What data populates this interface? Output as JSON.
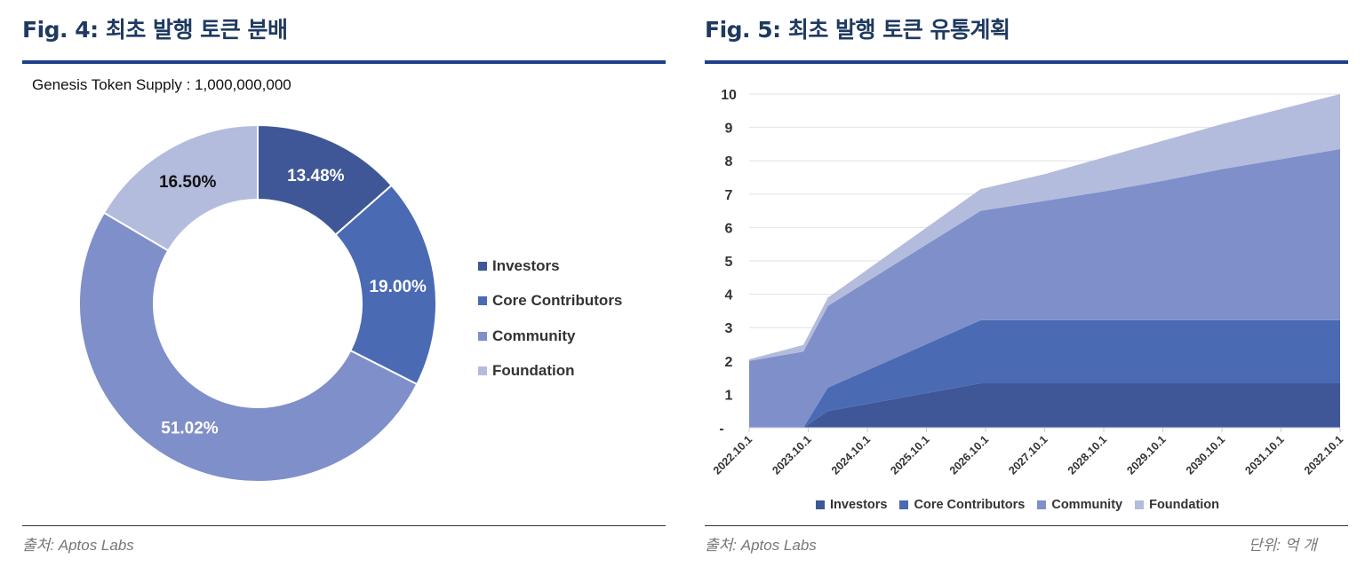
{
  "left": {
    "title": "Fig. 4: 최초 발행 토큰 분배",
    "source": "출처: Aptos Labs"
  },
  "right": {
    "title": "Fig. 5: 최초 발행 토큰 유통계획",
    "source": "출처: Aptos Labs",
    "unit": "단위: 억 개"
  },
  "colors": {
    "title": "#1f3a5f",
    "rule": "#1f3f8a"
  },
  "chart_data": [
    {
      "type": "pie",
      "subtitle": "Genesis Token Supply : 1,000,000,000",
      "donut": true,
      "categories": [
        "Investors",
        "Core Contributors",
        "Community",
        "Foundation"
      ],
      "values": [
        13.48,
        19.0,
        51.02,
        16.5
      ],
      "labels": [
        "13.48%",
        "19.00%",
        "51.02%",
        "16.50%"
      ],
      "colors": [
        "#3f5796",
        "#4a6ab3",
        "#7f8fc9",
        "#b3bcdd"
      ],
      "legend": "right"
    },
    {
      "type": "area",
      "stacked": true,
      "x": [
        "2022-10-01",
        "2023-09-01",
        "2024-02-01",
        "2026-09-01",
        "2027-10-01",
        "2028-10-01",
        "2029-10-01",
        "2030-10-01",
        "2031-10-01",
        "2032-10-01"
      ],
      "series": [
        {
          "name": "Investors",
          "color": "#3f5796",
          "values": [
            0,
            0,
            0.5,
            1.33,
            1.33,
            1.33,
            1.33,
            1.33,
            1.33,
            1.33
          ]
        },
        {
          "name": "Core Contributors",
          "color": "#4a6ab3",
          "values": [
            0,
            0,
            0.7,
            1.89,
            1.89,
            1.89,
            1.89,
            1.89,
            1.89,
            1.89
          ]
        },
        {
          "name": "Community",
          "color": "#7f8fc9",
          "values": [
            2.0,
            2.28,
            2.45,
            3.28,
            3.58,
            3.86,
            4.18,
            4.53,
            4.83,
            5.13
          ]
        },
        {
          "name": "Foundation",
          "color": "#b3bcdd",
          "values": [
            0.05,
            0.2,
            0.25,
            0.65,
            0.8,
            1.02,
            1.2,
            1.35,
            1.5,
            1.65
          ]
        }
      ],
      "xticks": [
        "2022.10.1",
        "2023.10.1",
        "2024.10.1",
        "2025.10.1",
        "2026.10.1",
        "2027.10.1",
        "2028.10.1",
        "2029.10.1",
        "2030.10.1",
        "2031.10.1",
        "2032.10.1"
      ],
      "yticks": [
        "-",
        "1",
        "2",
        "3",
        "4",
        "5",
        "6",
        "7",
        "8",
        "9",
        "10"
      ],
      "ylim": [
        0,
        10
      ],
      "grid": true,
      "legend": "bottom"
    }
  ]
}
